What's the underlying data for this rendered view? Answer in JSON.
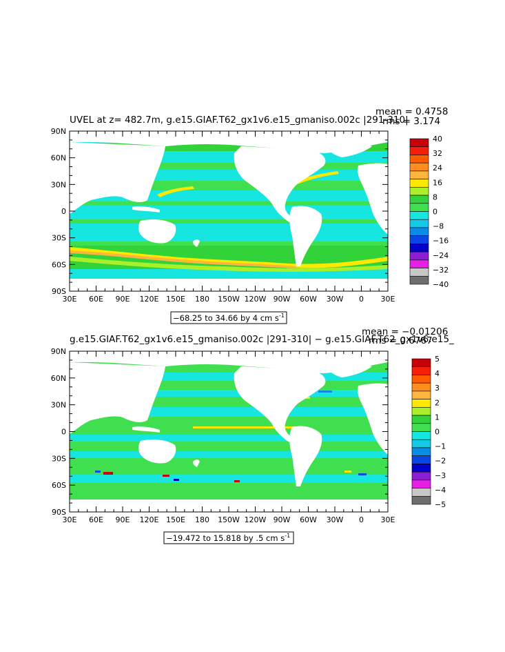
{
  "colors": {
    "ocean_neutral": "#16e5e0",
    "light_green": "#3fdf4f",
    "green": "#32d23a",
    "land": "#ffffff"
  },
  "chart_data": [
    {
      "type": "heatmap",
      "title": "UVEL at z= 482.7m, g.e15.GIAF.T62_gx1v6.e15_gmaniso.002c |291-310|",
      "stat_mean": "mean = 0.4758",
      "stat_rms": "rms = 3.174",
      "x_ticks": [
        "30E",
        "60E",
        "90E",
        "120E",
        "150E",
        "180",
        "150W",
        "120W",
        "90W",
        "60W",
        "30W",
        "0",
        "30E"
      ],
      "y_ticks": [
        "90N",
        "60N",
        "30N",
        "0",
        "30S",
        "60S",
        "90S"
      ],
      "range_label": "−68.25 to 34.66 by 4 cm s",
      "range_unit_exp": "-1",
      "colorbar": {
        "labels": [
          "40",
          "32",
          "24",
          "16",
          "8",
          "0",
          "−8",
          "−16",
          "−24",
          "−32",
          "−40"
        ],
        "colors": [
          "#c8000a",
          "#f51e0a",
          "#ff5a00",
          "#ff8c1e",
          "#ffb43c",
          "#ffe800",
          "#aaf02a",
          "#32d23a",
          "#3fdf4f",
          "#16e5e0",
          "#14c8e6",
          "#0a8ce6",
          "#0a46e6",
          "#0000c8",
          "#8c1ed2",
          "#e61ee6",
          "#c8c8c8",
          "#6e6e6e"
        ]
      }
    },
    {
      "type": "heatmap",
      "title": "g.e15.GIAF.T62_gx1v6.e15_gmaniso.002c |291-310| − g.e15.GIAF.T62_gx1v6.e15_",
      "stat_mean": "mean = −0.01206",
      "stat_rms": "rms = 0.6767",
      "x_ticks": [
        "30E",
        "60E",
        "90E",
        "120E",
        "150E",
        "180",
        "150W",
        "120W",
        "90W",
        "60W",
        "30W",
        "0",
        "30E"
      ],
      "y_ticks": [
        "90N",
        "60N",
        "30N",
        "0",
        "30S",
        "60S",
        "90S"
      ],
      "range_label": "−19.472 to 15.818 by .5 cm s",
      "range_unit_exp": "-1",
      "colorbar": {
        "labels": [
          "5",
          "4",
          "3",
          "2",
          "1",
          "0",
          "−1",
          "−2",
          "−3",
          "−4",
          "−5"
        ],
        "colors": [
          "#c8000a",
          "#f51e0a",
          "#ff5a00",
          "#ff8c1e",
          "#ffb43c",
          "#ffe800",
          "#aaf02a",
          "#32d23a",
          "#3fdf4f",
          "#16e5e0",
          "#14c8e6",
          "#0a8ce6",
          "#0a46e6",
          "#0000c8",
          "#8c1ed2",
          "#e61ee6",
          "#c8c8c8",
          "#6e6e6e"
        ]
      }
    }
  ]
}
